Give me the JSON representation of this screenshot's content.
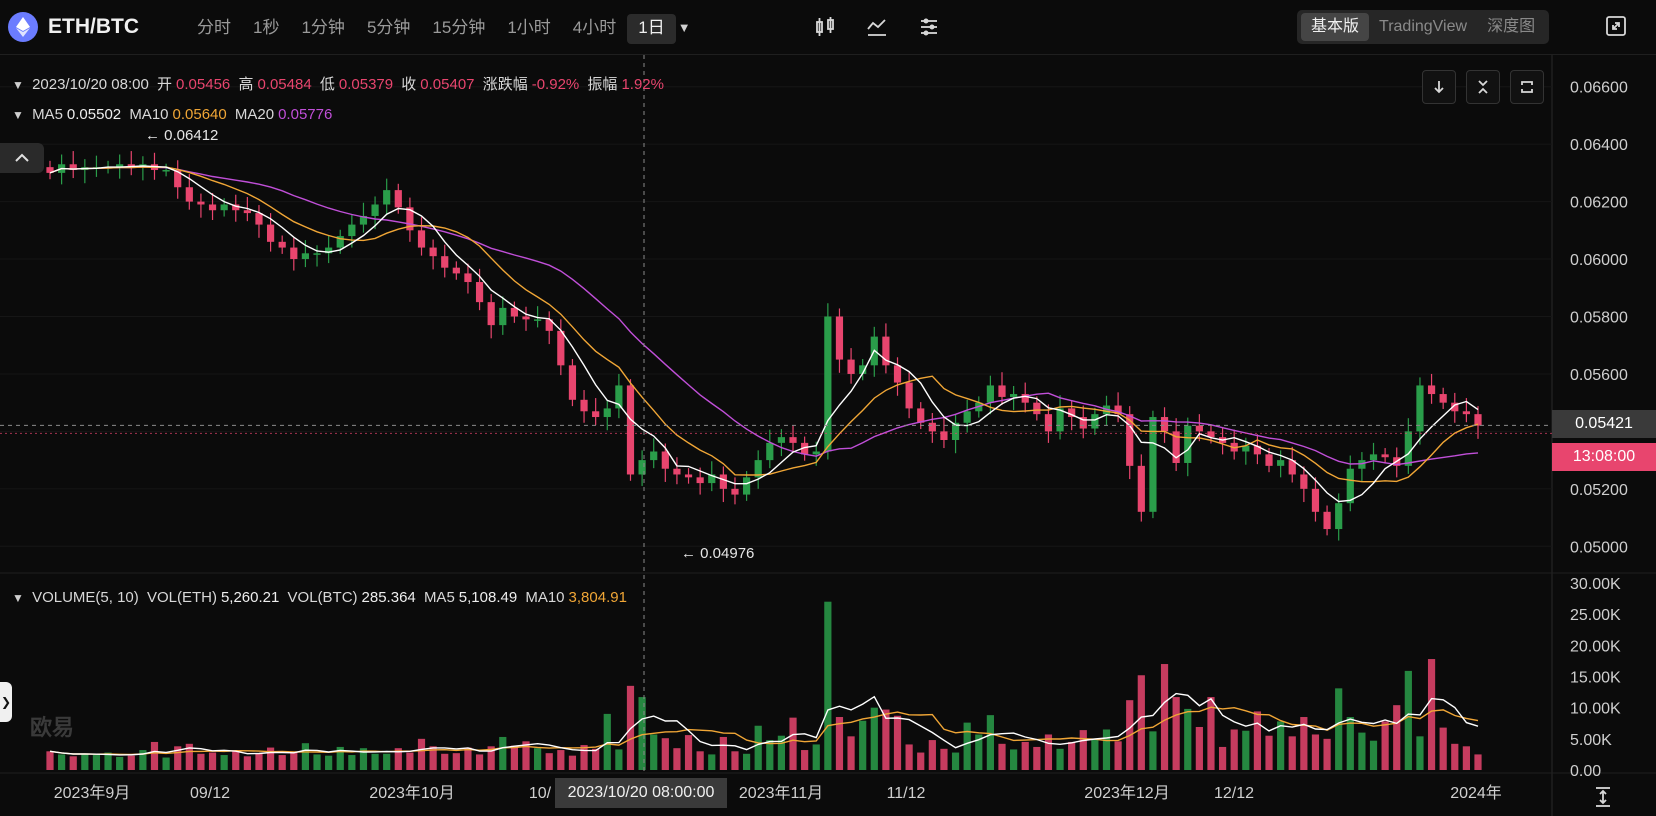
{
  "pair": "ETH/BTC",
  "intervals": [
    "分时",
    "1秒",
    "1分钟",
    "5分钟",
    "15分钟",
    "1小时",
    "4小时",
    "1日"
  ],
  "active_interval": "1日",
  "views": [
    "基本版",
    "TradingView",
    "深度图"
  ],
  "active_view": "基本版",
  "ohlc": {
    "date": "2023/10/20 08:00",
    "open_label": "开",
    "open": "0.05456",
    "high_label": "高",
    "high": "0.05484",
    "low_label": "低",
    "low": "0.05379",
    "close_label": "收",
    "close": "0.05407",
    "change_label": "涨跌幅",
    "change": "-0.92%",
    "amp_label": "振幅",
    "amp": "1.92%"
  },
  "ma": {
    "ma5_label": "MA5",
    "ma5": "0.05502",
    "ma10_label": "MA10",
    "ma10": "0.05640",
    "ma20_label": "MA20",
    "ma20": "0.05776"
  },
  "volume": {
    "title": "VOLUME(5, 10)",
    "eth_label": "VOL(ETH)",
    "eth": "5,260.21",
    "btc_label": "VOL(BTC)",
    "btc": "285.364",
    "ma5_label": "MA5",
    "ma5": "5,108.49",
    "ma10_label": "MA10",
    "ma10": "3,804.91"
  },
  "annotations": {
    "high": "← 0.06412",
    "low": "← 0.04976"
  },
  "current_price": "0.05421",
  "countdown": "13:08:00",
  "crosshair_date": "2023/10/20 08:00:00",
  "watermark": "欧易",
  "colors": {
    "up": "#2a9d4a",
    "down": "#e8456e",
    "ma5": "#ffffff",
    "ma10": "#f0a636",
    "ma20": "#c04fd8",
    "bg": "#0b0b0b"
  },
  "chart_data": {
    "type": "candlestick",
    "price_axis_ticks": [
      "0.06600",
      "0.06400",
      "0.06200",
      "0.06000",
      "0.05800",
      "0.05600",
      "0.05400",
      "0.05200",
      "0.05000"
    ],
    "volume_axis_ticks": [
      "30.00K",
      "25.00K",
      "20.00K",
      "15.00K",
      "10.00K",
      "5.00K",
      "0.00"
    ],
    "x_ticks": [
      "2023年9月",
      "09/12",
      "2023年10月",
      "10/",
      "2023年11月",
      "11/12",
      "2023年12月",
      "12/12",
      "2024年"
    ],
    "price_range": [
      0.049,
      0.067
    ],
    "volume_range": [
      0,
      30000
    ],
    "close_approx": [
      0.063,
      0.0633,
      0.0631,
      0.0632,
      0.0632,
      0.0632,
      0.0633,
      0.0632,
      0.0633,
      0.0631,
      0.0631,
      0.0625,
      0.062,
      0.0619,
      0.0617,
      0.0619,
      0.0617,
      0.0616,
      0.0612,
      0.0606,
      0.0604,
      0.06,
      0.0602,
      0.0602,
      0.0604,
      0.0608,
      0.0612,
      0.0615,
      0.0619,
      0.0624,
      0.0618,
      0.061,
      0.0604,
      0.0601,
      0.0597,
      0.0595,
      0.0592,
      0.0585,
      0.0577,
      0.0583,
      0.058,
      0.0579,
      0.0579,
      0.0575,
      0.0563,
      0.0551,
      0.0547,
      0.0545,
      0.0548,
      0.0556,
      0.0525,
      0.053,
      0.0533,
      0.0527,
      0.0525,
      0.0524,
      0.0522,
      0.0525,
      0.052,
      0.0518,
      0.0524,
      0.053,
      0.0536,
      0.0538,
      0.0536,
      0.0532,
      0.0533,
      0.058,
      0.0565,
      0.056,
      0.0563,
      0.0573,
      0.0563,
      0.0557,
      0.0548,
      0.0543,
      0.054,
      0.0537,
      0.0543,
      0.0547,
      0.055,
      0.0556,
      0.0552,
      0.0553,
      0.055,
      0.0546,
      0.054,
      0.0548,
      0.0545,
      0.0541,
      0.0546,
      0.0549,
      0.0546,
      0.0528,
      0.0512,
      0.0545,
      0.054,
      0.0529,
      0.0542,
      0.054,
      0.0538,
      0.0536,
      0.0533,
      0.0535,
      0.0532,
      0.0528,
      0.053,
      0.0525,
      0.052,
      0.0512,
      0.0506,
      0.0515,
      0.0527,
      0.053,
      0.0532,
      0.0531,
      0.0528,
      0.054,
      0.0556,
      0.0553,
      0.055,
      0.0547,
      0.0546,
      0.0542
    ],
    "volume_approx": [
      3000,
      2500,
      2200,
      2600,
      2400,
      2800,
      2100,
      2300,
      3200,
      4500,
      2000,
      3800,
      4200,
      2600,
      2800,
      2400,
      3100,
      2200,
      2700,
      3600,
      2400,
      2900,
      4300,
      2500,
      2300,
      3700,
      2400,
      3500,
      2600,
      2600,
      3500,
      2800,
      5000,
      3800,
      2600,
      2700,
      3600,
      2500,
      3800,
      5300,
      3900,
      4600,
      3500,
      2700,
      3200,
      2300,
      4000,
      3400,
      9000,
      3300,
      13500,
      11700,
      5700,
      5100,
      3500,
      5600,
      3000,
      2500,
      5300,
      3000,
      2600,
      7100,
      4800,
      5500,
      8400,
      3200,
      4100,
      27000,
      8500,
      5400,
      7900,
      10000,
      9700,
      8700,
      4100,
      2800,
      4800,
      3400,
      2800,
      7600,
      5700,
      8800,
      4200,
      3300,
      4500,
      3700,
      5700,
      3400,
      4500,
      6400,
      4900,
      6500,
      4600,
      11200,
      15200,
      6200,
      17000,
      11700,
      9800,
      6900,
      11700,
      3700,
      6500,
      6300,
      9400,
      5500,
      7800,
      5400,
      8500,
      5700,
      5000,
      13100,
      8500,
      6000,
      4700,
      7800,
      10400,
      15900,
      5400,
      17800,
      6800,
      4200,
      3800,
      2500
    ]
  }
}
